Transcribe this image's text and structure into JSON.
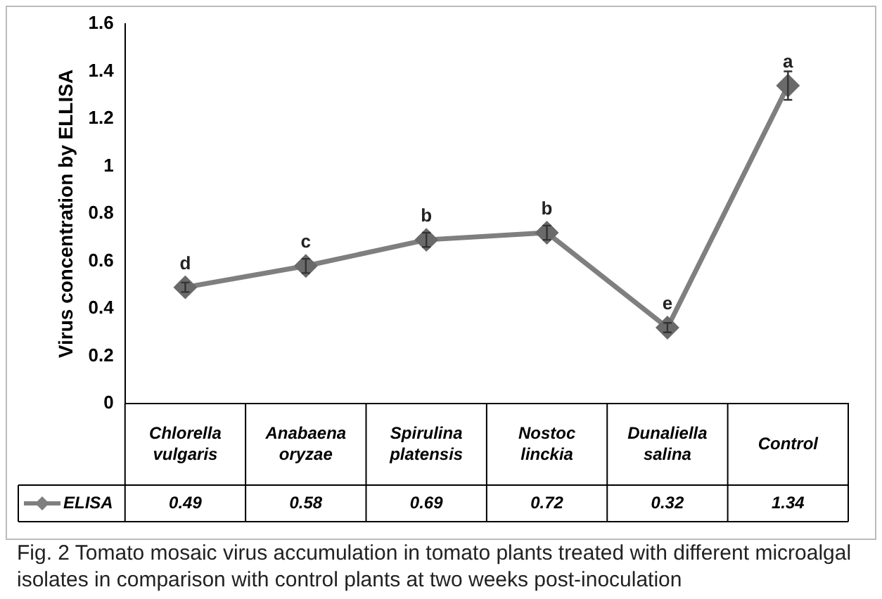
{
  "chart_data": {
    "type": "line",
    "ylabel": "Virus concentration by ELLISA",
    "categories": [
      "Chlorella vulgaris",
      "Anabaena oryzae",
      "Spirulina platensis",
      "Nostoc linckia",
      "Dunaliella salina",
      "Control"
    ],
    "series": [
      {
        "name": "ELISA",
        "color": "#7f7f7f",
        "values": [
          0.49,
          0.58,
          0.69,
          0.72,
          0.32,
          1.34
        ],
        "errors": [
          0.02,
          0.03,
          0.03,
          0.03,
          0.02,
          0.06
        ]
      }
    ],
    "ylim": [
      0,
      1.6
    ],
    "yticks": [
      0,
      0.2,
      0.4,
      0.6,
      0.8,
      1,
      1.2,
      1.4,
      1.6
    ],
    "marker": "diamond",
    "line_style": "solid",
    "legend": "bottom left",
    "data_labels": true,
    "annotations": [
      {
        "text": "d",
        "x": "Chlorella vulgaris",
        "y": 0.49
      },
      {
        "text": "c",
        "x": "Anabaena oryzae",
        "y": 0.58
      },
      {
        "text": "b",
        "x": "Spirulina platensis",
        "y": 0.69
      },
      {
        "text": "b",
        "x": "Nostoc linckia",
        "y": 0.72
      },
      {
        "text": "e",
        "x": "Dunaliella salina",
        "y": 0.32
      },
      {
        "text": "a",
        "x": "Control",
        "y": 1.34
      },
      "Fig. 2  Tomato mosaic virus accumulation in tomato plants treated with different microalgal isolates in comparison with control plants at two weeks post-inoculation"
    ]
  }
}
